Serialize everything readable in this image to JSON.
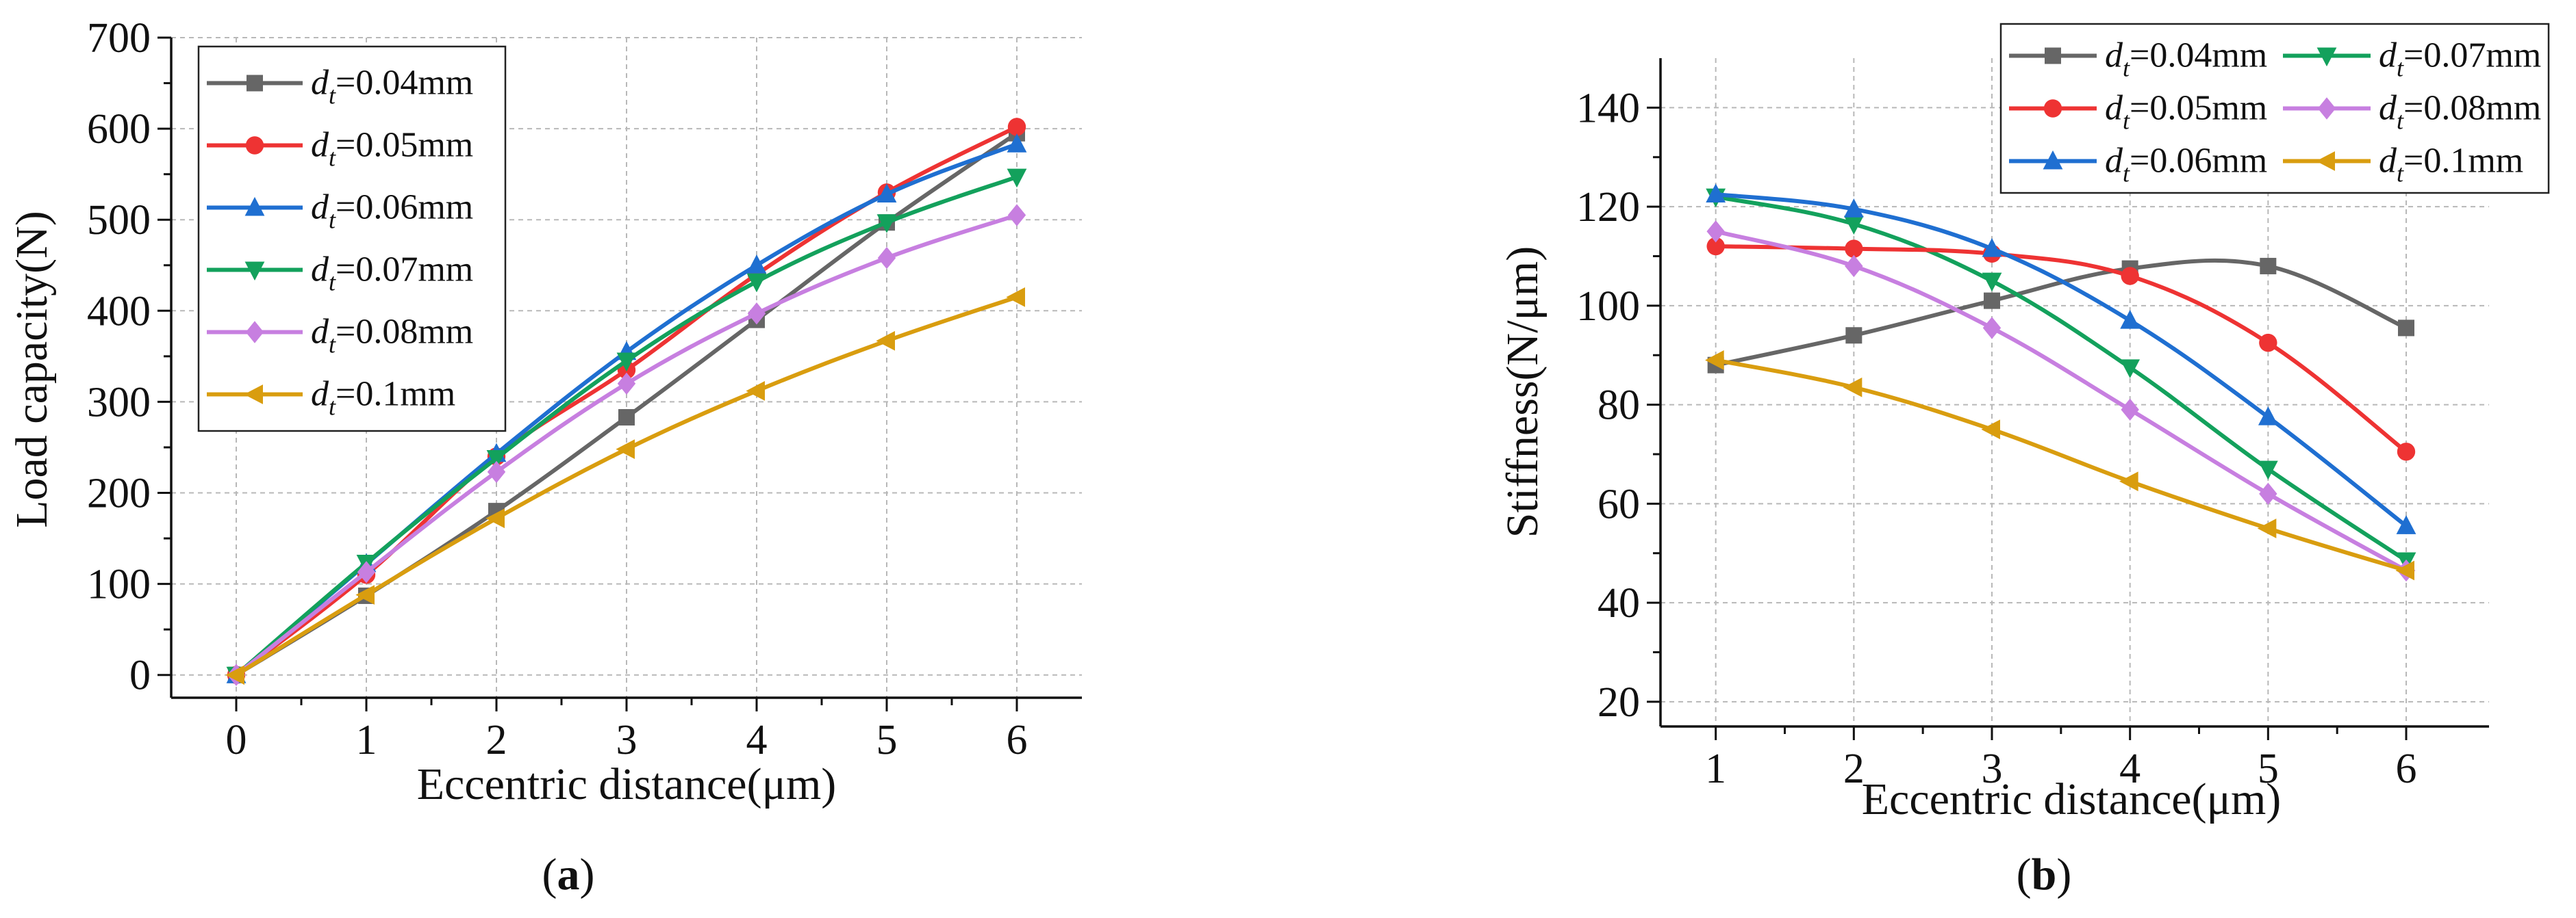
{
  "chart_data": [
    {
      "panel": "a",
      "type": "line",
      "panel_label": "a",
      "xlabel": "Eccentric distance(μm)",
      "ylabel": "Load capacity(N)",
      "xlim": [
        -0.5,
        6.5
      ],
      "ylim": [
        -25,
        700
      ],
      "xticks": [
        0,
        1,
        2,
        3,
        4,
        5,
        6
      ],
      "yticks": [
        0,
        100,
        200,
        300,
        400,
        500,
        600,
        700
      ],
      "grid": true,
      "legend_position": "top-left",
      "x": [
        0,
        1,
        2,
        3,
        4,
        5,
        6
      ],
      "series": [
        {
          "name": "dt=0.04mm",
          "label_var": "d",
          "label_sub": "t",
          "label_val": "=0.04mm",
          "color": "#666666",
          "marker": "square",
          "values": [
            0,
            87,
            180,
            283,
            390,
            497,
            595
          ]
        },
        {
          "name": "dt=0.05mm",
          "label_var": "d",
          "label_sub": "t",
          "label_val": "=0.05mm",
          "color": "#ee3333",
          "marker": "circle",
          "values": [
            0,
            110,
            240,
            335,
            440,
            530,
            602
          ]
        },
        {
          "name": "dt=0.06mm",
          "label_var": "d",
          "label_sub": "t",
          "label_val": "=0.06mm",
          "color": "#1f6fd1",
          "marker": "triangle-up",
          "values": [
            0,
            122,
            243,
            355,
            450,
            528,
            583
          ]
        },
        {
          "name": "dt=0.07mm",
          "label_var": "d",
          "label_sub": "t",
          "label_val": "=0.07mm",
          "color": "#13a15c",
          "marker": "triangle-down",
          "values": [
            0,
            123,
            238,
            345,
            432,
            497,
            547
          ]
        },
        {
          "name": "dt=0.08mm",
          "label_var": "d",
          "label_sub": "t",
          "label_val": "=0.08mm",
          "color": "#c77fe0",
          "marker": "diamond",
          "values": [
            0,
            113,
            223,
            320,
            397,
            458,
            505
          ]
        },
        {
          "name": "dt=0.1mm",
          "label_var": "d",
          "label_sub": "t",
          "label_val": "=0.1mm",
          "color": "#d99d0f",
          "marker": "triangle-left",
          "values": [
            0,
            88,
            172,
            248,
            312,
            367,
            415
          ]
        }
      ]
    },
    {
      "panel": "b",
      "type": "line",
      "panel_label": "b",
      "xlabel": "Eccentric distance(μm)",
      "ylabel": "Stiffness(N/μm)",
      "xlim": [
        0.6,
        6.6
      ],
      "ylim": [
        15,
        150
      ],
      "xticks": [
        1,
        2,
        3,
        4,
        5,
        6
      ],
      "yticks": [
        20,
        40,
        60,
        80,
        100,
        120,
        140
      ],
      "grid": true,
      "legend_position": "top-right",
      "x": [
        1,
        2,
        3,
        4,
        5,
        6
      ],
      "series": [
        {
          "name": "dt=0.04mm",
          "label_var": "d",
          "label_sub": "t",
          "label_val": "=0.04mm",
          "color": "#666666",
          "marker": "square",
          "values": [
            88,
            94,
            101,
            107.5,
            108,
            95.5
          ]
        },
        {
          "name": "dt=0.07mm",
          "label_var": "d",
          "label_sub": "t",
          "label_val": "=0.07mm",
          "color": "#13a15c",
          "marker": "triangle-down",
          "values": [
            122,
            116.5,
            105,
            87.5,
            67,
            48.5
          ]
        },
        {
          "name": "dt=0.05mm",
          "label_var": "d",
          "label_sub": "t",
          "label_val": "=0.05mm",
          "color": "#ee3333",
          "marker": "circle",
          "values": [
            112,
            111.5,
            110.5,
            106,
            92.5,
            70.5
          ]
        },
        {
          "name": "dt=0.08mm",
          "label_var": "d",
          "label_sub": "t",
          "label_val": "=0.08mm",
          "color": "#c77fe0",
          "marker": "diamond",
          "values": [
            115,
            108,
            95.5,
            79,
            62,
            46.5
          ]
        },
        {
          "name": "dt=0.06mm",
          "label_var": "d",
          "label_sub": "t",
          "label_val": "=0.06mm",
          "color": "#1f6fd1",
          "marker": "triangle-up",
          "values": [
            122.5,
            119.5,
            111.5,
            97,
            77.5,
            55.5
          ]
        },
        {
          "name": "dt=0.1mm",
          "label_var": "d",
          "label_sub": "t",
          "label_val": "=0.1mm",
          "color": "#d99d0f",
          "marker": "triangle-left",
          "values": [
            89,
            83.5,
            75,
            64.5,
            55,
            46.5
          ]
        }
      ]
    }
  ]
}
